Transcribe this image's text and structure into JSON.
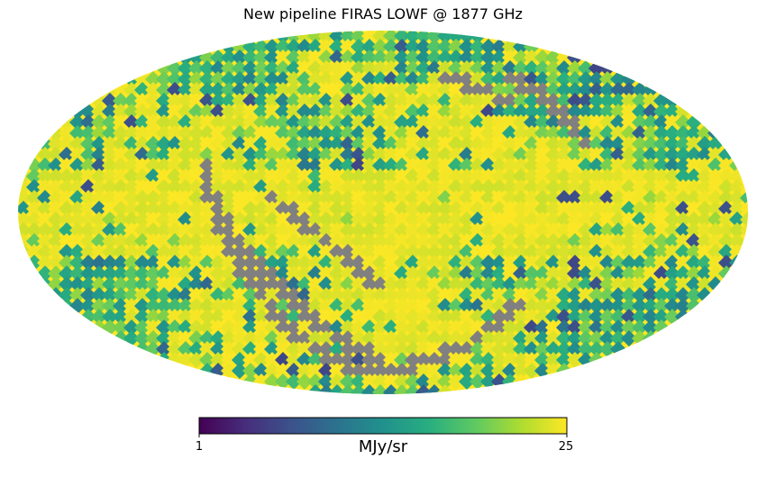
{
  "chart_data": {
    "type": "heatmap",
    "projection": "mollweide",
    "title": "New pipeline FIRAS LOWF @ 1877 GHz",
    "colormap": "viridis",
    "colorbar": {
      "min": 1,
      "max": 25,
      "min_label": "1",
      "max_label": "25",
      "unit": "MJy/sr",
      "orientation": "horizontal"
    },
    "bad_pixel_color": "#808080",
    "background_color": "#ffffff"
  }
}
